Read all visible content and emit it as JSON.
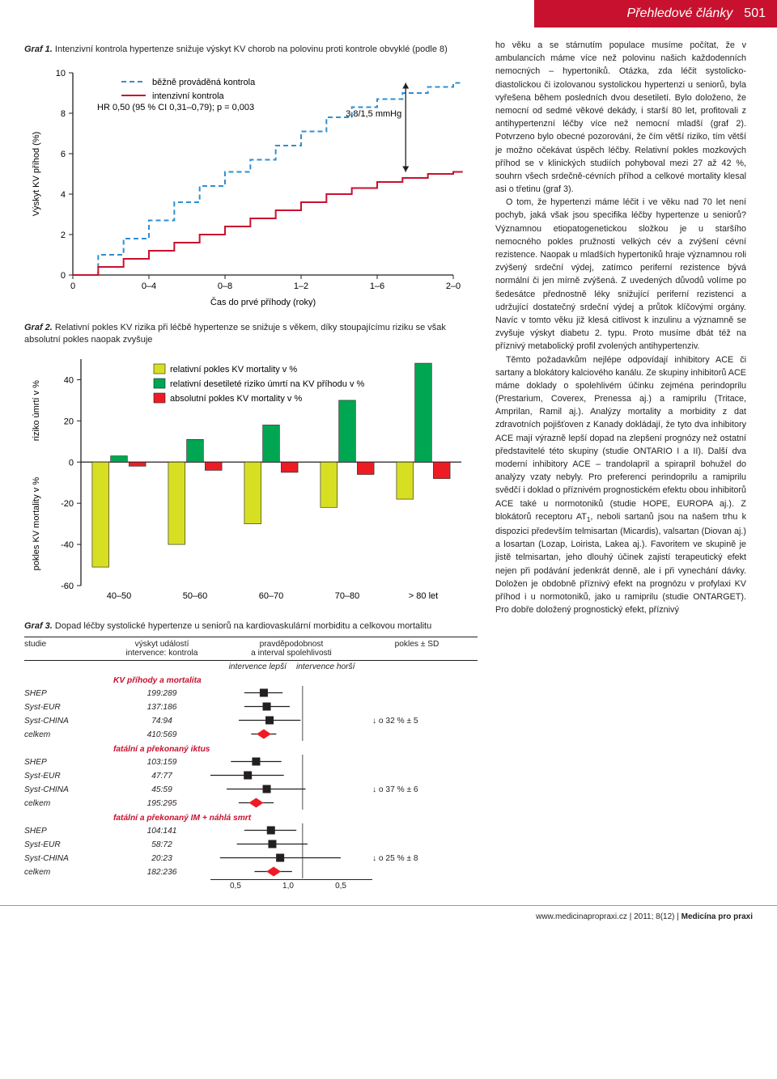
{
  "header": {
    "section": "Přehledové články",
    "page_number": "501"
  },
  "graf1": {
    "caption_label": "Graf 1.",
    "caption_text": " Intenzivní kontrola hypertenze snižuje výskyt KV chorob na polovinu proti kontrole obvyklé (podle 8)",
    "legend_dashed": "běžně prováděná kontrola",
    "legend_solid": "intenzivní kontrola",
    "hr_text": "HR 0,50 (95 % CI 0,31–0,79); p = 0,003",
    "annotation": "3,8/1,5 mmHg",
    "ylabel": "Výskyt KV příhod (%)",
    "xlabel": "Čas do prvé příhody (roky)",
    "x_ticks": [
      "0",
      "0–4",
      "0–8",
      "1–2",
      "1–6",
      "2–0"
    ],
    "y_ticks": [
      "0",
      "2",
      "4",
      "6",
      "8",
      "10"
    ],
    "dashed_color": "#2f8fd1",
    "solid_color": "#c8112e",
    "dashed_y": [
      0,
      1.0,
      1.8,
      2.7,
      3.6,
      4.4,
      5.1,
      5.7,
      6.4,
      7.1,
      7.8,
      8.3,
      8.7,
      9.0,
      9.3,
      9.5
    ],
    "solid_y": [
      0,
      0.4,
      0.8,
      1.2,
      1.6,
      2.0,
      2.4,
      2.8,
      3.2,
      3.6,
      4.0,
      4.3,
      4.6,
      4.8,
      5.0,
      5.1
    ]
  },
  "graf2": {
    "caption_label": "Graf 2.",
    "caption_text": " Relativní pokles KV rizika při léčbě hypertenze se snižuje s věkem, díky stoupajícímu riziku se však absolutní pokles naopak zvyšuje",
    "legend_yellow": "relativní pokles KV mortality v %",
    "legend_green": "relativní desetileté riziko úmrtí na KV příhodu v %",
    "legend_red": "absolutní pokles KV mortality v %",
    "ylabel_top": "riziko úmrtí v %",
    "ylabel_bottom": "pokles KV mortality v %",
    "y_ticks": [
      "-60",
      "-40",
      "-20",
      "0",
      "20",
      "40"
    ],
    "x_labels": [
      "40–50",
      "50–60",
      "60–70",
      "70–80",
      "> 80 let"
    ],
    "yellow_color": "#d7df23",
    "green_color": "#00a651",
    "red_color": "#ed1c24",
    "green_values": [
      3,
      11,
      18,
      30,
      48
    ],
    "yellow_values": [
      -51,
      -40,
      -30,
      -22,
      -18
    ],
    "red_values": [
      -2,
      -4,
      -5,
      -6,
      -8
    ]
  },
  "graf3": {
    "caption_label": "Graf 3.",
    "caption_text": " Dopad léčby systolické hypertenze u seniorů na kardiovaskulární morbiditu a celkovou mortalitu",
    "head_studie": "studie",
    "head_vyskyt": "výskyt událostí\nintervence: kontrola",
    "head_prav": "pravděpodobnost\na interval spolehlivosti",
    "head_pokles": "pokles ± SD",
    "sub_lepsi": "intervence lepší",
    "sub_horsi": "intervence horší",
    "sections": [
      {
        "title": "KV příhody a mortalita",
        "effect_text": "↓ o 32 % ± 5",
        "rows": [
          {
            "study": "SHEP",
            "ratio": "199:289",
            "pt": 0.68,
            "lo": 0.56,
            "hi": 0.82,
            "shape": "sq"
          },
          {
            "study": "Syst-EUR",
            "ratio": "137:186",
            "pt": 0.7,
            "lo": 0.56,
            "hi": 0.88,
            "shape": "sq"
          },
          {
            "study": "Syst-CHINA",
            "ratio": "74:94",
            "pt": 0.72,
            "lo": 0.53,
            "hi": 0.98,
            "shape": "sq"
          },
          {
            "study": "celkem",
            "ratio": "410:569",
            "pt": 0.68,
            "lo": 0.6,
            "hi": 0.77,
            "shape": "dia"
          }
        ]
      },
      {
        "title": "fatální a překonaný iktus",
        "effect_text": "↓ o 37 % ± 6",
        "rows": [
          {
            "study": "SHEP",
            "ratio": "103:159",
            "pt": 0.63,
            "lo": 0.49,
            "hi": 0.81,
            "shape": "sq"
          },
          {
            "study": "Syst-EUR",
            "ratio": "47:77",
            "pt": 0.58,
            "lo": 0.4,
            "hi": 0.83,
            "shape": "sq"
          },
          {
            "study": "Syst-CHINA",
            "ratio": "45:59",
            "pt": 0.7,
            "lo": 0.47,
            "hi": 1.03,
            "shape": "sq"
          },
          {
            "study": "celkem",
            "ratio": "195:295",
            "pt": 0.63,
            "lo": 0.53,
            "hi": 0.75,
            "shape": "dia"
          }
        ]
      },
      {
        "title": "fatální a překonaný IM + náhlá smrt",
        "effect_text": "↓ o 25 % ± 8",
        "rows": [
          {
            "study": "SHEP",
            "ratio": "104:141",
            "pt": 0.73,
            "lo": 0.56,
            "hi": 0.94,
            "shape": "sq"
          },
          {
            "study": "Syst-EUR",
            "ratio": "58:72",
            "pt": 0.74,
            "lo": 0.52,
            "hi": 1.05,
            "shape": "sq"
          },
          {
            "study": "Syst-CHINA",
            "ratio": "20:23",
            "pt": 0.8,
            "lo": 0.44,
            "hi": 1.46,
            "shape": "sq"
          },
          {
            "study": "celkem",
            "ratio": "182:236",
            "pt": 0.75,
            "lo": 0.62,
            "hi": 0.9,
            "shape": "dia"
          }
        ]
      }
    ],
    "axis_ticks": [
      "0,5",
      "1,0",
      "0,5"
    ],
    "square_color": "#231f20",
    "diamond_color": "#ed1c24"
  },
  "body_text_html": "ho věku a se stárnutím populace musíme počítat, že v ambulancích máme více než polovinu našich každodenních nemocných – hypertoniků. Otázka, zda léčit systolicko-diastolickou či izolovanou systolickou hypertenzi u seniorů, byla vyřešena během posledních dvou desetiletí. Bylo doloženo, že nemocní od sedmé věkové dekády, i starší 80 let, profitovali z antihypertenzní léčby více než nemocní mladší (graf 2). Potvrzeno bylo obecné pozorování, že čím větší riziko, tím větší je možno očekávat úspěch léčby. Relativní pokles mozkových příhod se v klinických studiích pohyboval mezi 27 až 42 %, souhrn všech srdečně-cévních příhod a celkové mortality klesal asi o třetinu (graf 3).|O tom, že hypertenzi máme léčit i ve věku nad 70 let není pochyb, jaká však jsou specifika léčby hypertenze u seniorů? Významnou etiopatogenetickou složkou je u staršího nemocného pokles pružnosti velkých cév a zvýšení cévní rezistence. Naopak u mladších hypertoniků hraje významnou roli zvýšený srdeční výdej, zatímco periferní rezistence bývá normální či jen mírně zvýšená. Z uvedených důvodů volíme po šedesátce přednostně léky snižující periferní rezistenci a udržující dostatečný srdeční výdej a průtok klíčovými orgány. Navíc v tomto věku již klesá citlivost k inzulinu a významně se zvyšuje výskyt diabetu 2. typu. Proto musíme dbát též na příznivý metabolický profil zvolených antihypertenziv.|Těmto požadavkům nejlépe odpovídají inhibitory ACE či sartany a blokátory kalciového kanálu. Ze skupiny inhibitorů ACE máme doklady o spolehlivém účinku zejména perindoprilu (Prestarium, Coverex, Prenessa aj.) a ramiprilu (Tritace, Amprilan, Ramil aj.). Analýzy mortality a morbidity z dat zdravotních pojišťoven z Kanady dokládají, že tyto dva inhibitory ACE mají výrazně lepší dopad na zlepšení prognózy než ostatní představitelé této skupiny (studie ONTARIO I a II). Další dva moderní inhibitory ACE – trandolapril a spirapril bohužel do analýzy vzaty nebyly. Pro preferenci perindoprilu a ramiprilu svědčí i doklad o příznivém prognostickém efektu obou inhibitorů ACE také u normotoniků (studie HOPE, EUROPA aj.). Z blokátorů receptoru AT<span class=\"sub1\">1</span>, neboli sartanů jsou na našem trhu k dispozici především telmisartan (Micardis), valsartan (Diovan aj.) a losartan (Lozap, Loirista, Lakea aj.). Favoritem ve skupině je jistě telmisartan, jeho dlouhý účinek zajistí terapeutický efekt nejen při podávání jedenkrát denně, ale i při vynechání dávky. Doložen je obdobně příznivý efekt na prognózu v profylaxi KV příhod i u normotoniků, jako u ramiprilu (studie ONTARGET). Pro dobře doložený prognostický efekt, příznivý",
  "footer": {
    "url": "www.medicinapropraxi.cz",
    "sep": " | ",
    "issue": "2011; 8(12)",
    "journal": "Medicína pro praxi"
  }
}
